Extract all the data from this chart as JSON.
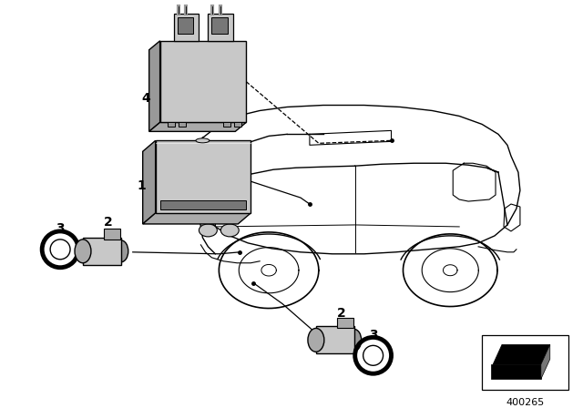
{
  "background_color": "#ffffff",
  "part_number": "400265",
  "line_color": "#000000",
  "gray_fill": "#aaaaaa",
  "light_gray": "#c8c8c8",
  "dark_gray": "#777777",
  "med_gray": "#999999"
}
